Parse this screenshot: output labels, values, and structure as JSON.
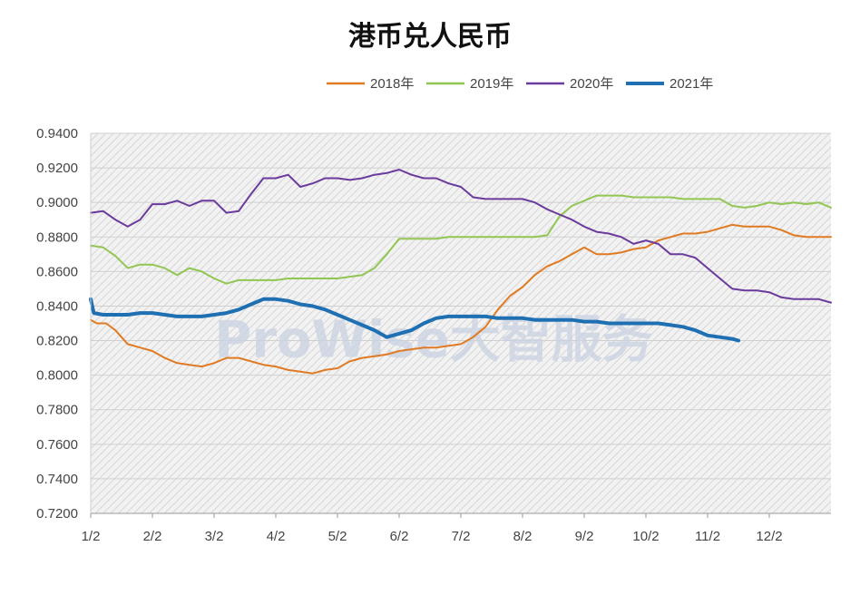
{
  "chart_data": {
    "type": "line",
    "title": "港币兑人民币",
    "xlabel": "",
    "ylabel": "",
    "ylim": [
      0.72,
      0.94
    ],
    "y_ticks": [
      "0.7200",
      "0.7400",
      "0.7600",
      "0.7800",
      "0.8000",
      "0.8200",
      "0.8400",
      "0.8600",
      "0.8800",
      "0.9000",
      "0.9200",
      "0.9400"
    ],
    "x_ticks": [
      "1/2",
      "2/2",
      "3/2",
      "4/2",
      "5/2",
      "6/2",
      "7/2",
      "8/2",
      "9/2",
      "10/2",
      "11/2",
      "12/2"
    ],
    "x_domain": [
      0,
      12
    ],
    "grid": true,
    "legend_position": "top",
    "watermark": "ProWise大智服务",
    "series": [
      {
        "name": "2018年",
        "color": "#E07B24",
        "x": [
          0,
          0.1,
          0.25,
          0.4,
          0.6,
          0.8,
          1.0,
          1.2,
          1.4,
          1.6,
          1.8,
          2.0,
          2.2,
          2.4,
          2.6,
          2.8,
          3.0,
          3.2,
          3.4,
          3.6,
          3.8,
          4.0,
          4.2,
          4.4,
          4.6,
          4.8,
          5.0,
          5.2,
          5.4,
          5.6,
          5.8,
          6.0,
          6.2,
          6.4,
          6.6,
          6.8,
          7.0,
          7.2,
          7.4,
          7.6,
          7.8,
          8.0,
          8.2,
          8.4,
          8.6,
          8.8,
          9.0,
          9.2,
          9.4,
          9.6,
          9.8,
          10.0,
          10.2,
          10.4,
          10.6,
          10.8,
          11.0,
          11.2,
          11.4,
          11.6,
          11.8,
          12.0
        ],
        "values": [
          0.832,
          0.83,
          0.83,
          0.826,
          0.818,
          0.816,
          0.814,
          0.81,
          0.807,
          0.806,
          0.805,
          0.807,
          0.81,
          0.81,
          0.808,
          0.806,
          0.805,
          0.803,
          0.802,
          0.801,
          0.803,
          0.804,
          0.808,
          0.81,
          0.811,
          0.812,
          0.814,
          0.815,
          0.816,
          0.816,
          0.817,
          0.818,
          0.822,
          0.828,
          0.838,
          0.846,
          0.851,
          0.858,
          0.863,
          0.866,
          0.87,
          0.874,
          0.87,
          0.87,
          0.871,
          0.873,
          0.874,
          0.878,
          0.88,
          0.882,
          0.882,
          0.883,
          0.885,
          0.887,
          0.886,
          0.886,
          0.886,
          0.884,
          0.881,
          0.88,
          0.88,
          0.88
        ]
      },
      {
        "name": "2019年",
        "color": "#92C653",
        "x": [
          0,
          0.2,
          0.4,
          0.6,
          0.8,
          1.0,
          1.2,
          1.4,
          1.6,
          1.8,
          2.0,
          2.2,
          2.4,
          2.6,
          2.8,
          3.0,
          3.2,
          3.4,
          3.6,
          3.8,
          4.0,
          4.2,
          4.4,
          4.6,
          4.8,
          5.0,
          5.2,
          5.4,
          5.6,
          5.8,
          6.0,
          6.2,
          6.4,
          6.6,
          6.8,
          7.0,
          7.2,
          7.4,
          7.6,
          7.8,
          8.0,
          8.2,
          8.4,
          8.6,
          8.8,
          9.0,
          9.2,
          9.4,
          9.6,
          9.8,
          10.0,
          10.2,
          10.4,
          10.6,
          10.8,
          11.0,
          11.2,
          11.4,
          11.6,
          11.8,
          12.0
        ],
        "values": [
          0.875,
          0.874,
          0.869,
          0.862,
          0.864,
          0.864,
          0.862,
          0.858,
          0.862,
          0.86,
          0.856,
          0.853,
          0.855,
          0.855,
          0.855,
          0.855,
          0.856,
          0.856,
          0.856,
          0.856,
          0.856,
          0.857,
          0.858,
          0.862,
          0.87,
          0.879,
          0.879,
          0.879,
          0.879,
          0.88,
          0.88,
          0.88,
          0.88,
          0.88,
          0.88,
          0.88,
          0.88,
          0.881,
          0.892,
          0.898,
          0.901,
          0.904,
          0.904,
          0.904,
          0.903,
          0.903,
          0.903,
          0.903,
          0.902,
          0.902,
          0.902,
          0.902,
          0.898,
          0.897,
          0.898,
          0.9,
          0.899,
          0.9,
          0.899,
          0.9,
          0.897
        ]
      },
      {
        "name": "2020年",
        "color": "#6A3A9C",
        "x": [
          0,
          0.2,
          0.4,
          0.6,
          0.8,
          1.0,
          1.2,
          1.4,
          1.6,
          1.8,
          2.0,
          2.2,
          2.4,
          2.6,
          2.8,
          3.0,
          3.2,
          3.4,
          3.6,
          3.8,
          4.0,
          4.2,
          4.4,
          4.6,
          4.8,
          5.0,
          5.2,
          5.4,
          5.6,
          5.8,
          6.0,
          6.2,
          6.4,
          6.6,
          6.8,
          7.0,
          7.2,
          7.4,
          7.6,
          7.8,
          8.0,
          8.2,
          8.4,
          8.6,
          8.8,
          9.0,
          9.2,
          9.4,
          9.6,
          9.8,
          10.0,
          10.2,
          10.4,
          10.6,
          10.8,
          11.0,
          11.2,
          11.4,
          11.6,
          11.8,
          12.0
        ],
        "values": [
          0.894,
          0.895,
          0.89,
          0.886,
          0.89,
          0.899,
          0.899,
          0.901,
          0.898,
          0.901,
          0.901,
          0.894,
          0.895,
          0.905,
          0.914,
          0.914,
          0.916,
          0.909,
          0.911,
          0.914,
          0.914,
          0.913,
          0.914,
          0.916,
          0.917,
          0.919,
          0.916,
          0.914,
          0.914,
          0.911,
          0.909,
          0.903,
          0.902,
          0.902,
          0.902,
          0.902,
          0.9,
          0.896,
          0.893,
          0.89,
          0.886,
          0.883,
          0.882,
          0.88,
          0.876,
          0.878,
          0.876,
          0.87,
          0.87,
          0.868,
          0.862,
          0.856,
          0.85,
          0.849,
          0.849,
          0.848,
          0.845,
          0.844,
          0.844,
          0.844,
          0.842
        ]
      },
      {
        "name": "2021年",
        "color": "#1F6FB3",
        "width": 4,
        "x": [
          0,
          0.05,
          0.2,
          0.4,
          0.6,
          0.8,
          1.0,
          1.2,
          1.4,
          1.6,
          1.8,
          2.0,
          2.2,
          2.4,
          2.6,
          2.8,
          3.0,
          3.2,
          3.4,
          3.6,
          3.8,
          4.0,
          4.2,
          4.4,
          4.6,
          4.8,
          5.0,
          5.2,
          5.4,
          5.6,
          5.8,
          6.0,
          6.2,
          6.4,
          6.6,
          6.8,
          7.0,
          7.2,
          7.4,
          7.6,
          7.8,
          8.0,
          8.2,
          8.4,
          8.6,
          8.8,
          9.0,
          9.2,
          9.4,
          9.6,
          9.8,
          10.0,
          10.2,
          10.4,
          10.5
        ],
        "values": [
          0.844,
          0.836,
          0.835,
          0.835,
          0.835,
          0.836,
          0.836,
          0.835,
          0.834,
          0.834,
          0.834,
          0.835,
          0.836,
          0.838,
          0.841,
          0.844,
          0.844,
          0.843,
          0.841,
          0.84,
          0.838,
          0.835,
          0.832,
          0.829,
          0.826,
          0.822,
          0.824,
          0.826,
          0.83,
          0.833,
          0.834,
          0.834,
          0.834,
          0.834,
          0.833,
          0.833,
          0.833,
          0.832,
          0.832,
          0.832,
          0.832,
          0.831,
          0.831,
          0.83,
          0.83,
          0.83,
          0.83,
          0.83,
          0.829,
          0.828,
          0.826,
          0.823,
          0.822,
          0.821,
          0.82
        ]
      }
    ]
  }
}
